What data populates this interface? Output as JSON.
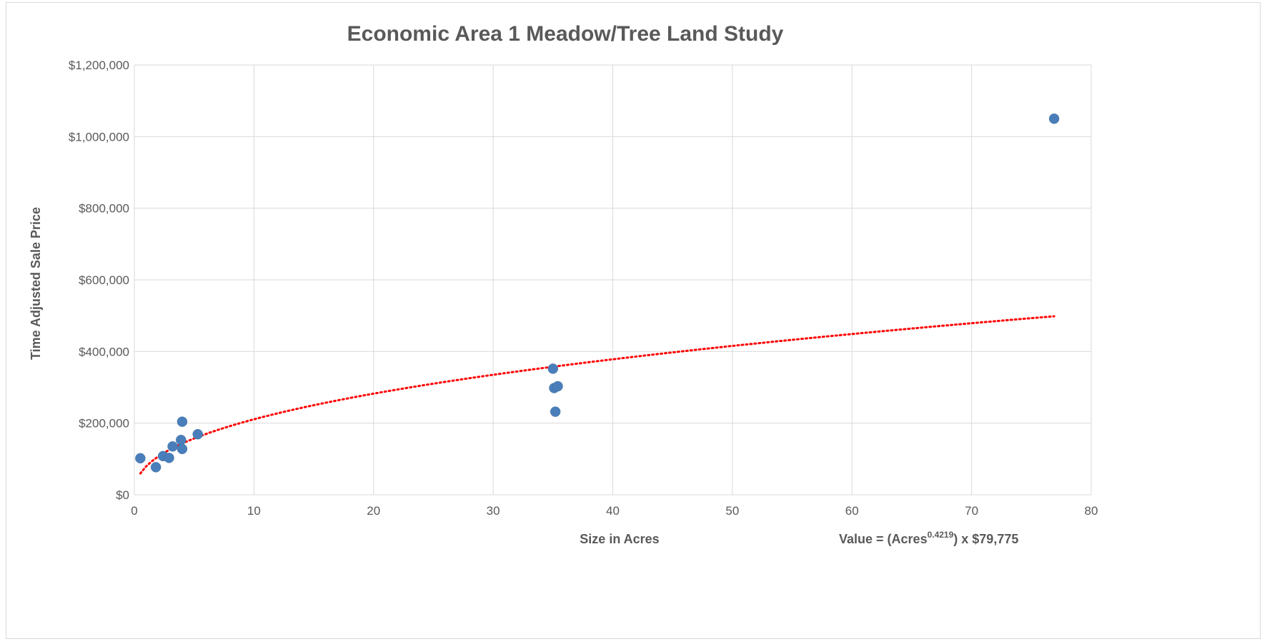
{
  "chart_data": {
    "type": "scatter",
    "title": "Economic Area 1 Meadow/Tree Land Study",
    "xlabel": "Size in Acres",
    "ylabel": "Time Adjusted Sale Price",
    "xlim": [
      0,
      80
    ],
    "ylim": [
      0,
      1200000
    ],
    "x_ticks": [
      0,
      10,
      20,
      30,
      40,
      50,
      60,
      70,
      80
    ],
    "x_tick_labels": [
      "0",
      "10",
      "20",
      "30",
      "40",
      "50",
      "60",
      "70",
      "80"
    ],
    "y_ticks": [
      0,
      200000,
      400000,
      600000,
      800000,
      1000000,
      1200000
    ],
    "y_tick_labels": [
      "$0",
      "$200,000",
      "$400,000",
      "$600,000",
      "$800,000",
      "$1,000,000",
      "$1,200,000"
    ],
    "grid": true,
    "legend": "none",
    "points": [
      {
        "x": 0.5,
        "y": 102000
      },
      {
        "x": 1.8,
        "y": 77000
      },
      {
        "x": 2.4,
        "y": 108000
      },
      {
        "x": 2.9,
        "y": 103000
      },
      {
        "x": 3.2,
        "y": 135000
      },
      {
        "x": 3.9,
        "y": 153000
      },
      {
        "x": 4.0,
        "y": 128000
      },
      {
        "x": 4.0,
        "y": 204000
      },
      {
        "x": 5.3,
        "y": 169000
      },
      {
        "x": 35.0,
        "y": 352000
      },
      {
        "x": 35.1,
        "y": 298000
      },
      {
        "x": 35.4,
        "y": 303000
      },
      {
        "x": 35.2,
        "y": 232000
      },
      {
        "x": 76.9,
        "y": 1050000
      }
    ],
    "trendline": {
      "type": "power",
      "exponent": 0.4219,
      "coefficient": 79775,
      "x_range": [
        0.5,
        76.9
      ],
      "formula_prefix": "Value = (Acres",
      "formula_exponent": "0.4219",
      "formula_suffix": ") x $79,775"
    },
    "colors": {
      "points": "#4a7ebb",
      "trendline": "#ff0000",
      "grid": "#d9d9d9",
      "text": "#595959"
    }
  }
}
